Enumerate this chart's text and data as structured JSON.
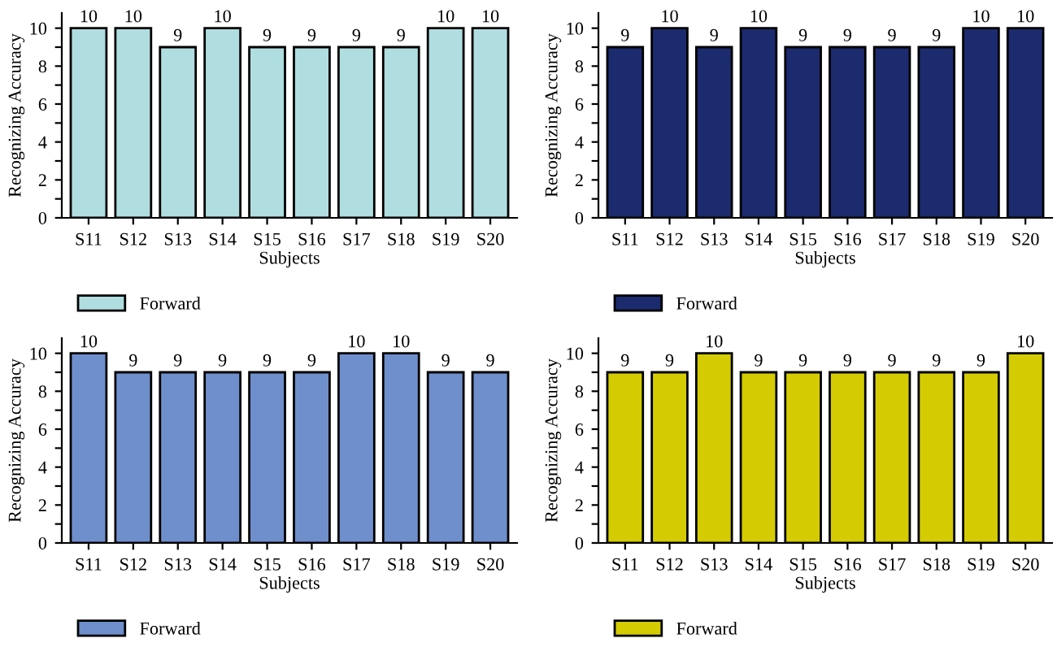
{
  "chart_data": [
    {
      "type": "bar",
      "xlabel": "Subjects",
      "ylabel": "Recognizing Accuracy",
      "categories": [
        "S11",
        "S12",
        "S13",
        "S14",
        "S15",
        "S16",
        "S17",
        "S18",
        "S19",
        "S20"
      ],
      "series": [
        {
          "name": "Forward",
          "color": "#b0dde0",
          "values": [
            10,
            10,
            9,
            10,
            9,
            9,
            9,
            9,
            10,
            10
          ]
        }
      ],
      "ylim": [
        0,
        10.8
      ],
      "yticks": [
        0,
        {
          "value": 1,
          "label": null
        },
        2,
        {
          "value": 3,
          "label": null
        },
        4,
        {
          "value": 5,
          "label": null
        },
        6,
        {
          "value": 7,
          "label": null
        },
        8,
        {
          "value": 9,
          "label": null
        },
        10
      ],
      "data_labels": true,
      "grid": false,
      "legend": "bottom left"
    },
    {
      "type": "bar",
      "xlabel": "Subjects",
      "ylabel": "Recognizing Accuracy",
      "categories": [
        "S11",
        "S12",
        "S13",
        "S14",
        "S15",
        "S16",
        "S17",
        "S18",
        "S19",
        "S20"
      ],
      "series": [
        {
          "name": "Forward",
          "color": "#1c2a6e",
          "values": [
            9,
            10,
            9,
            10,
            9,
            9,
            9,
            9,
            10,
            10
          ]
        }
      ],
      "ylim": [
        0,
        10.8
      ],
      "yticks": [
        0,
        {
          "value": 1,
          "label": null
        },
        2,
        {
          "value": 3,
          "label": null
        },
        4,
        {
          "value": 5,
          "label": null
        },
        6,
        {
          "value": 7,
          "label": null
        },
        8,
        {
          "value": 9,
          "label": null
        },
        10
      ],
      "data_labels": true,
      "grid": false,
      "legend": "bottom left"
    },
    {
      "type": "bar",
      "xlabel": "Subjects",
      "ylabel": "Recognizing Accuracy",
      "categories": [
        "S11",
        "S12",
        "S13",
        "S14",
        "S15",
        "S16",
        "S17",
        "S18",
        "S19",
        "S20"
      ],
      "series": [
        {
          "name": "Forward",
          "color": "#6f8fcc",
          "values": [
            10,
            9,
            9,
            9,
            9,
            9,
            10,
            10,
            9,
            9
          ]
        }
      ],
      "ylim": [
        0,
        10.8
      ],
      "yticks": [
        0,
        {
          "value": 1,
          "label": null
        },
        2,
        {
          "value": 3,
          "label": null
        },
        4,
        {
          "value": 5,
          "label": null
        },
        6,
        {
          "value": 7,
          "label": null
        },
        8,
        {
          "value": 9,
          "label": null
        },
        10
      ],
      "data_labels": true,
      "grid": false,
      "legend": "bottom left"
    },
    {
      "type": "bar",
      "xlabel": "Subjects",
      "ylabel": "Recognizing Accuracy",
      "categories": [
        "S11",
        "S12",
        "S13",
        "S14",
        "S15",
        "S16",
        "S17",
        "S18",
        "S19",
        "S20"
      ],
      "series": [
        {
          "name": "Forward",
          "color": "#d4cc00",
          "values": [
            9,
            9,
            10,
            9,
            9,
            9,
            9,
            9,
            9,
            10
          ]
        }
      ],
      "ylim": [
        0,
        10.8
      ],
      "yticks": [
        0,
        {
          "value": 1,
          "label": null
        },
        2,
        {
          "value": 3,
          "label": null
        },
        4,
        {
          "value": 5,
          "label": null
        },
        6,
        {
          "value": 7,
          "label": null
        },
        8,
        {
          "value": 9,
          "label": null
        },
        10
      ],
      "data_labels": true,
      "grid": false,
      "legend": "bottom left"
    }
  ]
}
